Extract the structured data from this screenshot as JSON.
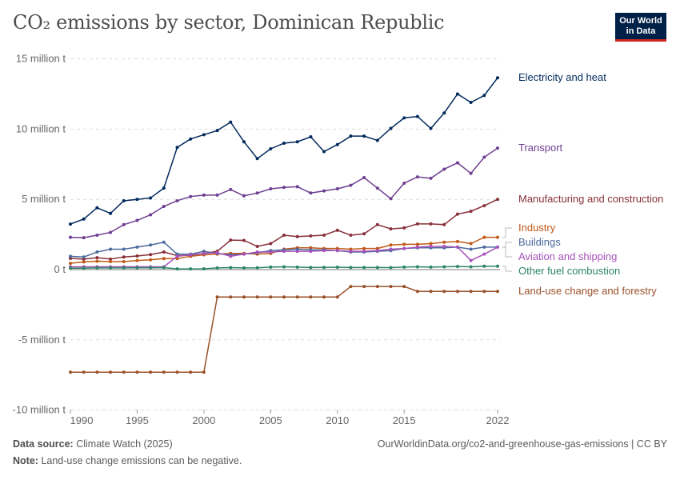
{
  "title": "CO₂ emissions by sector, Dominican Republic",
  "logo": {
    "line1": "Our World",
    "line2": "in Data"
  },
  "footer": {
    "source_label": "Data source:",
    "source": "Climate Watch (2025)",
    "url": "OurWorldinData.org/co2-and-greenhouse-gas-emissions | CC BY",
    "note_label": "Note:",
    "note": "Land-use change emissions can be negative."
  },
  "chart_data": {
    "type": "line",
    "title": "CO₂ emissions by sector, Dominican Republic",
    "xlabel": "",
    "ylabel": "",
    "ylim": [
      -10000000,
      15000000
    ],
    "xlim": [
      1990,
      2022
    ],
    "y_ticks": [
      {
        "value": 15,
        "label": "15 million t"
      },
      {
        "value": 10,
        "label": "10 million t"
      },
      {
        "value": 5,
        "label": "5 million t"
      },
      {
        "value": 0,
        "label": "0 t"
      },
      {
        "value": -5,
        "label": "-5 million t"
      },
      {
        "value": -10,
        "label": "-10 million t"
      }
    ],
    "y_unit": "million t",
    "x_ticks": [
      "1990",
      "1995",
      "2000",
      "2005",
      "2010",
      "2015",
      "2022"
    ],
    "grid": "horizontal dashed",
    "legend": "right, inline labels",
    "x": [
      1990,
      1991,
      1992,
      1993,
      1994,
      1995,
      1996,
      1997,
      1998,
      1999,
      2000,
      2001,
      2002,
      2003,
      2004,
      2005,
      2006,
      2007,
      2008,
      2009,
      2010,
      2011,
      2012,
      2013,
      2014,
      2015,
      2016,
      2017,
      2018,
      2019,
      2020,
      2021,
      2022
    ],
    "series": [
      {
        "name": "Electricity and heat",
        "color": "#00295b",
        "values": [
          3.24,
          3.6,
          4.4,
          4.0,
          4.9,
          5.0,
          5.1,
          5.8,
          8.7,
          9.3,
          9.6,
          9.9,
          10.5,
          9.1,
          7.9,
          8.6,
          9.0,
          9.1,
          9.45,
          8.4,
          8.9,
          9.5,
          9.5,
          9.2,
          10.05,
          10.8,
          10.9,
          10.05,
          11.15,
          12.5,
          11.9,
          12.4,
          13.65
        ]
      },
      {
        "name": "Transport",
        "color": "#6d3e91",
        "values": [
          2.3,
          2.27,
          2.45,
          2.65,
          3.2,
          3.5,
          3.9,
          4.5,
          4.9,
          5.2,
          5.3,
          5.3,
          5.7,
          5.25,
          5.45,
          5.75,
          5.85,
          5.9,
          5.45,
          5.6,
          5.75,
          6.0,
          6.55,
          5.8,
          5.05,
          6.15,
          6.6,
          6.5,
          7.15,
          7.6,
          6.85,
          8.0,
          8.65
        ]
      },
      {
        "name": "Manufacturing and construction",
        "color": "#883039",
        "values": [
          0.8,
          0.75,
          0.85,
          0.75,
          0.9,
          0.97,
          1.07,
          1.25,
          1.0,
          1.02,
          1.15,
          1.3,
          2.1,
          2.08,
          1.65,
          1.85,
          2.45,
          2.35,
          2.4,
          2.45,
          2.8,
          2.45,
          2.55,
          3.2,
          2.9,
          2.97,
          3.25,
          3.25,
          3.2,
          3.95,
          4.15,
          4.55,
          5.0
        ]
      },
      {
        "name": "Industry",
        "color": "#c05917",
        "values": [
          0.45,
          0.55,
          0.6,
          0.57,
          0.57,
          0.65,
          0.7,
          0.78,
          0.78,
          0.95,
          1.05,
          1.1,
          1.15,
          1.15,
          1.1,
          1.15,
          1.45,
          1.55,
          1.55,
          1.5,
          1.5,
          1.45,
          1.5,
          1.5,
          1.75,
          1.8,
          1.8,
          1.85,
          1.95,
          2.0,
          1.85,
          2.3,
          2.3
        ]
      },
      {
        "name": "Buildings",
        "color": "#4c6a9c",
        "values": [
          0.95,
          0.9,
          1.25,
          1.45,
          1.45,
          1.6,
          1.75,
          1.95,
          1.1,
          1.1,
          1.3,
          1.15,
          1.05,
          1.1,
          1.2,
          1.35,
          1.4,
          1.45,
          1.4,
          1.4,
          1.35,
          1.25,
          1.25,
          1.3,
          1.35,
          1.5,
          1.55,
          1.55,
          1.55,
          1.6,
          1.45,
          1.6,
          1.6
        ]
      },
      {
        "name": "Aviation and shipping",
        "color": "#a652ba",
        "values": [
          0.2,
          0.2,
          0.2,
          0.2,
          0.2,
          0.2,
          0.2,
          0.2,
          0.95,
          1.05,
          1.15,
          1.2,
          0.95,
          1.1,
          1.25,
          1.25,
          1.3,
          1.3,
          1.3,
          1.35,
          1.35,
          1.3,
          1.3,
          1.35,
          1.45,
          1.5,
          1.6,
          1.65,
          1.65,
          1.6,
          0.65,
          1.1,
          1.6
        ]
      },
      {
        "name": "Other fuel combustion",
        "color": "#2c8465",
        "values": [
          0.1,
          0.1,
          0.12,
          0.12,
          0.12,
          0.13,
          0.13,
          0.14,
          0.05,
          0.05,
          0.06,
          0.12,
          0.14,
          0.12,
          0.13,
          0.18,
          0.2,
          0.18,
          0.15,
          0.16,
          0.17,
          0.15,
          0.15,
          0.15,
          0.14,
          0.18,
          0.2,
          0.18,
          0.2,
          0.22,
          0.2,
          0.24,
          0.24
        ]
      },
      {
        "name": "Land-use change and forestry",
        "color": "#9a5129",
        "values": [
          -7.3,
          -7.3,
          -7.3,
          -7.3,
          -7.3,
          -7.3,
          -7.3,
          -7.3,
          -7.3,
          -7.3,
          -7.3,
          -1.95,
          -1.95,
          -1.95,
          -1.95,
          -1.95,
          -1.95,
          -1.95,
          -1.95,
          -1.95,
          -1.95,
          -1.2,
          -1.2,
          -1.2,
          -1.2,
          -1.2,
          -1.55,
          -1.55,
          -1.55,
          -1.55,
          -1.55,
          -1.55,
          -1.55
        ]
      }
    ]
  }
}
